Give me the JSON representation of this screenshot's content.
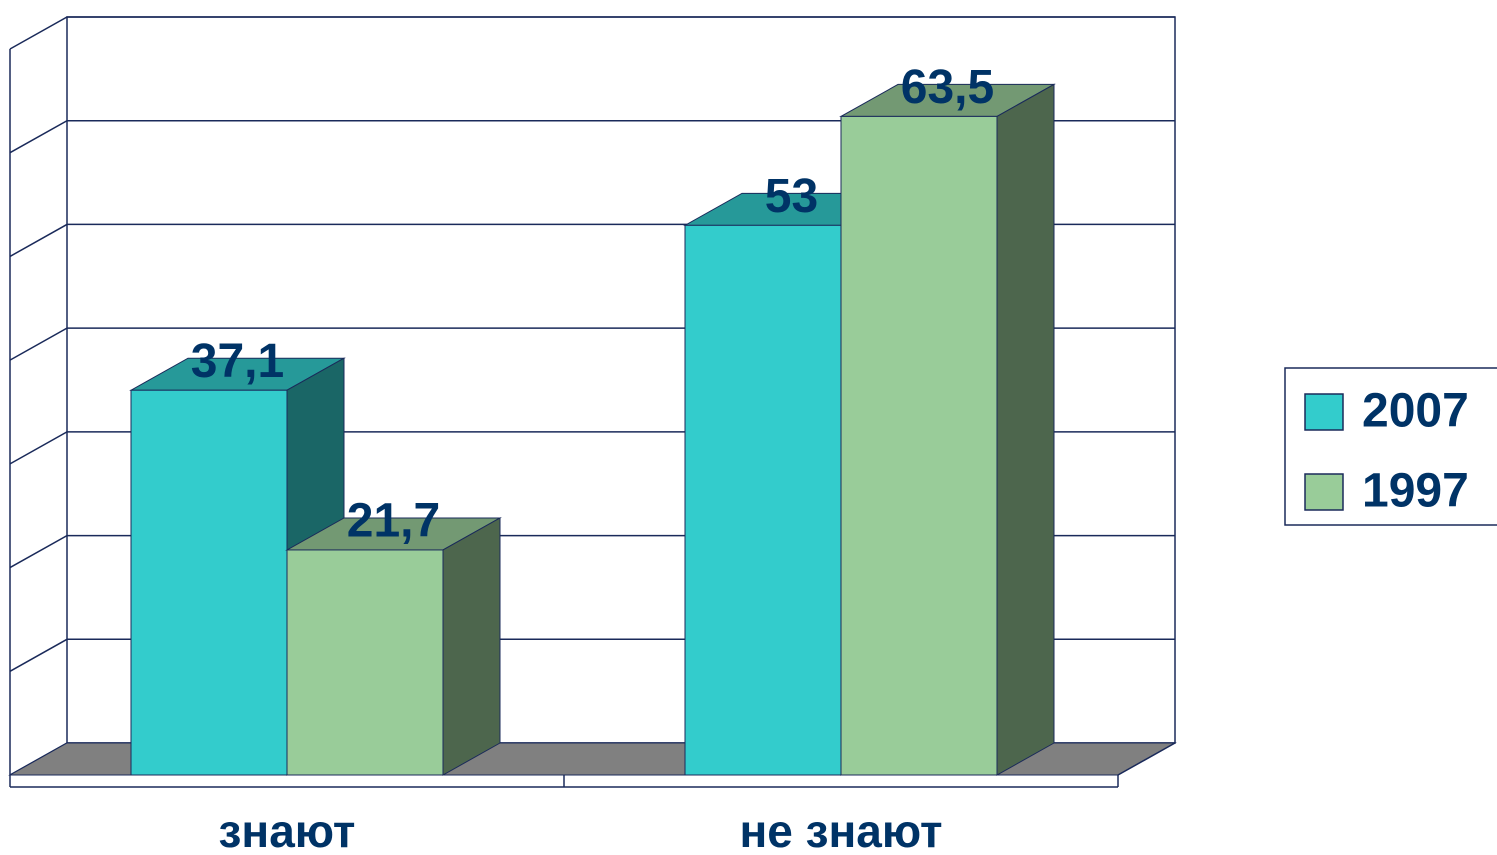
{
  "chart_data": {
    "type": "bar3d",
    "categories": [
      "знают",
      "не знают"
    ],
    "series": [
      {
        "name": "2007",
        "color": "#33CCCC",
        "values": [
          37.1,
          53
        ],
        "value_labels": [
          "37,1",
          "53"
        ]
      },
      {
        "name": "1997",
        "color": "#99CC99",
        "values": [
          21.7,
          63.5
        ],
        "value_labels": [
          "21,7",
          "63,5"
        ]
      }
    ],
    "ylim": [
      0,
      70
    ],
    "yticks": [
      0,
      10,
      20,
      30,
      40,
      50,
      60,
      70
    ],
    "grid": true,
    "legend": "right"
  }
}
